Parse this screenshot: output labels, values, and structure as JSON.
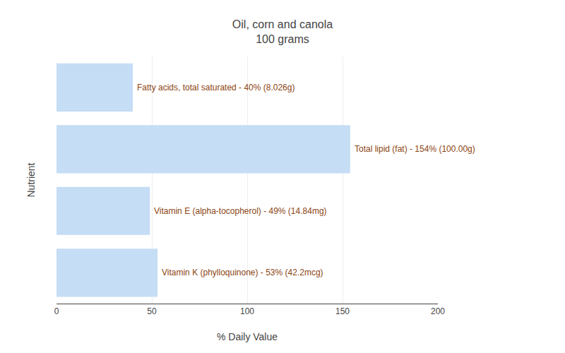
{
  "chart_data": {
    "type": "bar",
    "orientation": "horizontal",
    "title": "Oil, corn and canola",
    "subtitle": "100 grams",
    "x_label": "% Daily Value",
    "y_label": "Nutrient",
    "categories": [
      null,
      null,
      null,
      null
    ],
    "values": [
      40,
      154,
      49,
      53
    ],
    "value_labels": [
      "Fatty acids, total saturated - 40% (8.026g)",
      "Total lipid (fat) - 154% (100.00g)",
      "Vitamin E (alpha-tocopherol) - 49% (14.84mg)",
      "Vitamin K (phylloquinone) - 53% (42.2mcg)"
    ],
    "data_labels": true,
    "color": "#c5ddf5",
    "xlim": [
      0,
      200
    ],
    "xticks": [
      0,
      50,
      100,
      150,
      200
    ],
    "grid": true,
    "tick_labels": "x"
  }
}
